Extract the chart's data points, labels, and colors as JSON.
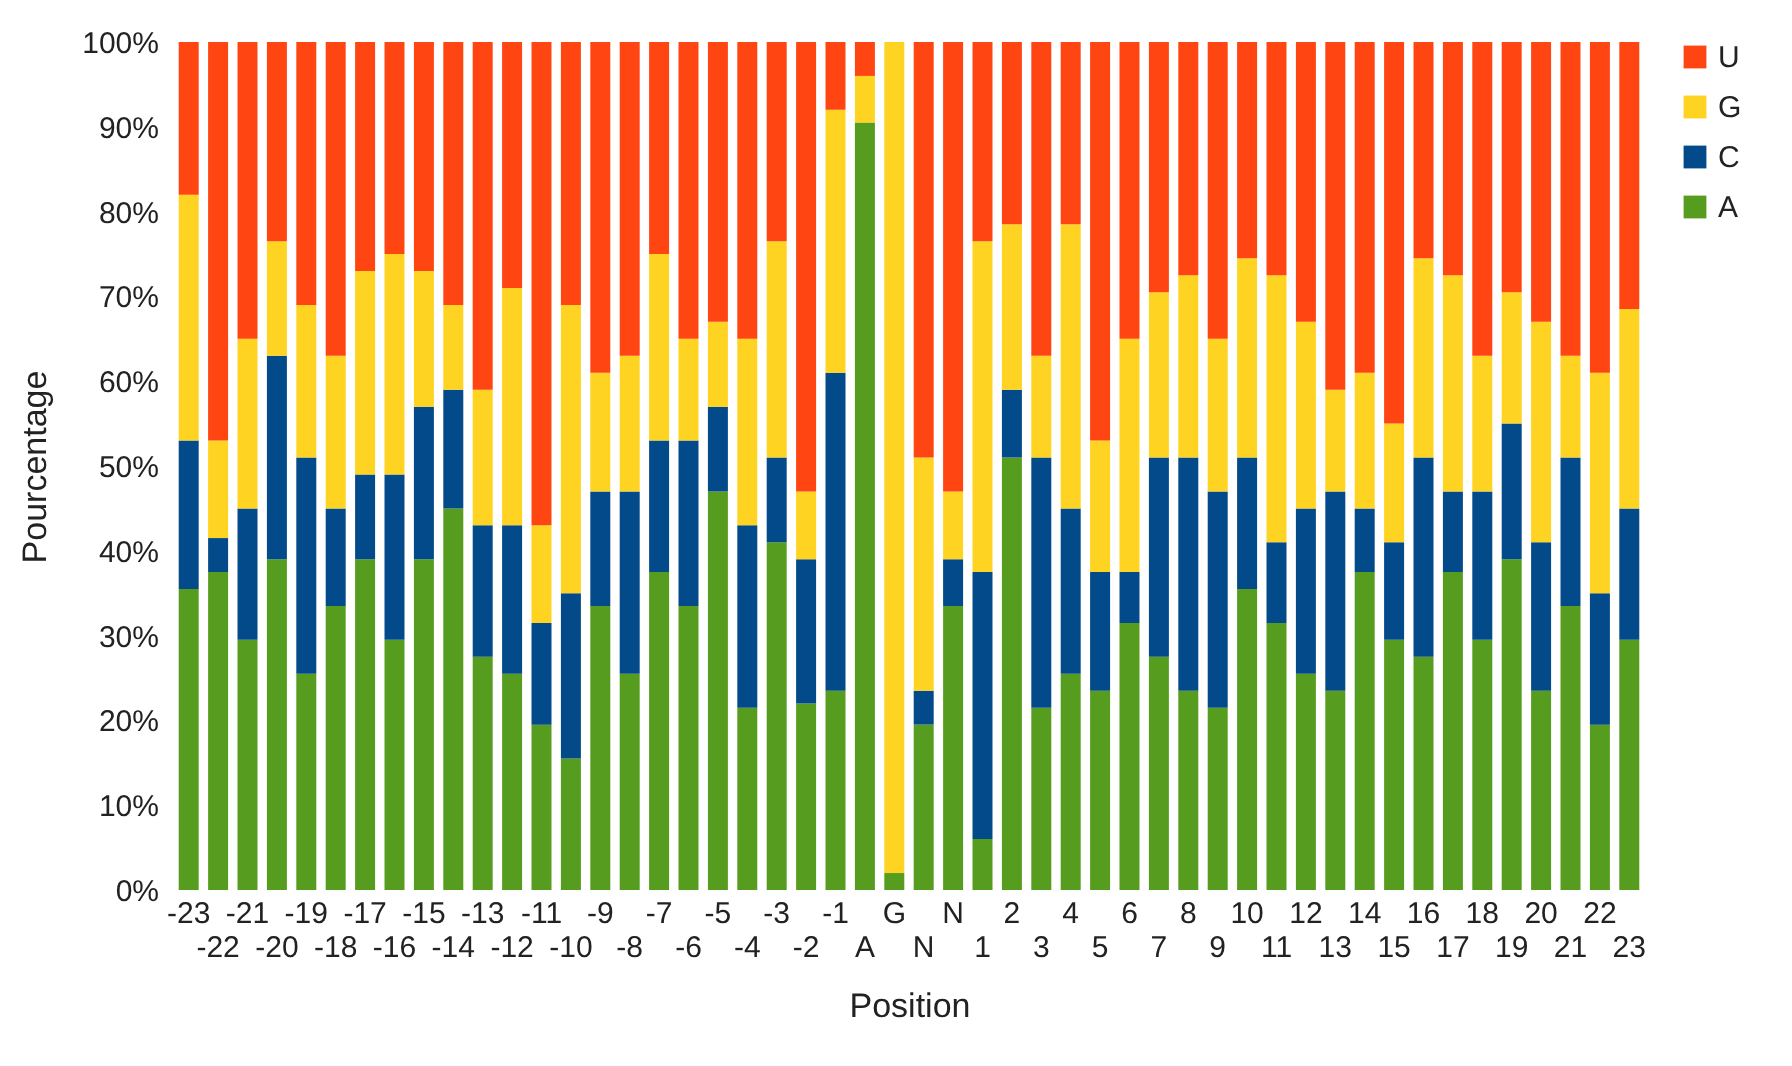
{
  "chart_data": {
    "type": "bar",
    "stacked": true,
    "xlabel": "Position",
    "ylabel": "Pourcentage",
    "categories": [
      "-23",
      "-22",
      "-21",
      "-20",
      "-19",
      "-18",
      "-17",
      "-16",
      "-15",
      "-14",
      "-13",
      "-12",
      "-11",
      "-10",
      "-9",
      "-8",
      "-7",
      "-6",
      "-5",
      "-4",
      "-3",
      "-2",
      "-1",
      "A",
      "G",
      "N",
      "N",
      "1",
      "2",
      "3",
      "4",
      "5",
      "6",
      "7",
      "8",
      "9",
      "10",
      "11",
      "12",
      "13",
      "14",
      "15",
      "16",
      "17",
      "18",
      "19",
      "20",
      "21",
      "22",
      "23"
    ],
    "series": [
      {
        "name": "A",
        "color": "#569d1f",
        "values": [
          35.5,
          37.5,
          29.5,
          39,
          25.5,
          33.5,
          39,
          29.5,
          39,
          45,
          27.5,
          25.5,
          19.5,
          15.5,
          33.5,
          25.5,
          37.5,
          33.5,
          47,
          21.5,
          41,
          22,
          23.5,
          90.5,
          2,
          19.5,
          33.5,
          6,
          51,
          21.5,
          25.5,
          23.5,
          31.5,
          27.5,
          23.5,
          21.5,
          35.5,
          31.5,
          25.5,
          23.5,
          37.5,
          29.5,
          27.5,
          37.5,
          29.5,
          39,
          23.5,
          33.5,
          19.5,
          29.5
        ]
      },
      {
        "name": "C",
        "color": "#024a89",
        "values": [
          17.5,
          4,
          15.5,
          24,
          25.5,
          11.5,
          10,
          19.5,
          18,
          14,
          15.5,
          17.5,
          12,
          19.5,
          13.5,
          21.5,
          15.5,
          19.5,
          10,
          21.5,
          10,
          17,
          37.5,
          0,
          0,
          4,
          5.5,
          31.5,
          8,
          29.5,
          19.5,
          14,
          6,
          23.5,
          27.5,
          25.5,
          15.5,
          9.5,
          19.5,
          23.5,
          7.5,
          11.5,
          23.5,
          9.5,
          17.5,
          16,
          17.5,
          17.5,
          15.5,
          15.5
        ]
      },
      {
        "name": "G",
        "color": "#ffd321",
        "values": [
          29,
          11.5,
          20,
          13.5,
          18,
          18,
          24,
          26,
          16,
          10,
          16,
          28,
          11.5,
          34,
          14,
          16,
          22,
          12,
          10,
          22,
          25.5,
          8,
          31,
          5.5,
          98,
          27.5,
          8,
          39,
          19.5,
          12,
          33.5,
          15.5,
          27.5,
          19.5,
          21.5,
          18,
          23.5,
          31.5,
          22,
          12,
          16,
          14,
          23.5,
          25.5,
          16,
          15.5,
          26,
          12,
          26,
          23.5
        ]
      },
      {
        "name": "U",
        "color": "#ff4512",
        "values": [
          18,
          47,
          35,
          23.5,
          31,
          37,
          27,
          25,
          27,
          31,
          41,
          29,
          57,
          31,
          39,
          37,
          25,
          35,
          33,
          35,
          23.5,
          53,
          8,
          4,
          0,
          49,
          53,
          23.5,
          21.5,
          37,
          21.5,
          47,
          35,
          29.5,
          27.5,
          35,
          25.5,
          27.5,
          33,
          41,
          39,
          45,
          25.5,
          27.5,
          37,
          29.5,
          33,
          37,
          39,
          31.5
        ]
      }
    ],
    "ylim": [
      0,
      100
    ],
    "yticks": [
      {
        "value": 0,
        "label": "0%"
      },
      {
        "value": 10,
        "label": "10%"
      },
      {
        "value": 20,
        "label": "20%"
      },
      {
        "value": 30,
        "label": "30%"
      },
      {
        "value": 40,
        "label": "40%"
      },
      {
        "value": 50,
        "label": "50%"
      },
      {
        "value": 60,
        "label": "60%"
      },
      {
        "value": 70,
        "label": "70%"
      },
      {
        "value": 80,
        "label": "80%"
      },
      {
        "value": 90,
        "label": "90%"
      },
      {
        "value": 100,
        "label": "100%"
      }
    ],
    "grid": false,
    "legend": "right"
  }
}
